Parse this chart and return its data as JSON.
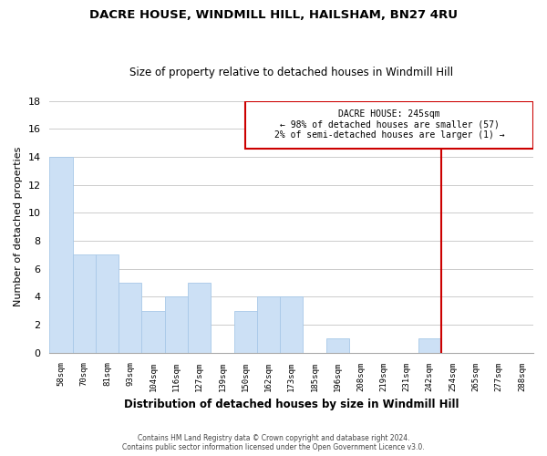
{
  "title": "DACRE HOUSE, WINDMILL HILL, HAILSHAM, BN27 4RU",
  "subtitle": "Size of property relative to detached houses in Windmill Hill",
  "xlabel": "Distribution of detached houses by size in Windmill Hill",
  "ylabel": "Number of detached properties",
  "footer_line1": "Contains HM Land Registry data © Crown copyright and database right 2024.",
  "footer_line2": "Contains public sector information licensed under the Open Government Licence v3.0.",
  "bin_labels": [
    "58sqm",
    "70sqm",
    "81sqm",
    "93sqm",
    "104sqm",
    "116sqm",
    "127sqm",
    "139sqm",
    "150sqm",
    "162sqm",
    "173sqm",
    "185sqm",
    "196sqm",
    "208sqm",
    "219sqm",
    "231sqm",
    "242sqm",
    "254sqm",
    "265sqm",
    "277sqm",
    "288sqm"
  ],
  "bar_values": [
    14,
    7,
    7,
    5,
    3,
    4,
    5,
    0,
    3,
    4,
    4,
    0,
    1,
    0,
    0,
    0,
    1,
    0,
    0,
    0,
    0
  ],
  "bar_color": "#cce0f5",
  "bar_edge_color": "#a8c8e8",
  "ylim": [
    0,
    18
  ],
  "yticks": [
    0,
    2,
    4,
    6,
    8,
    10,
    12,
    14,
    16,
    18
  ],
  "dacre_house_label": "DACRE HOUSE: 245sqm",
  "annotation_line1": "← 98% of detached houses are smaller (57)",
  "annotation_line2": "2% of semi-detached houses are larger (1) →",
  "vline_bin_index": 16,
  "vline_color": "#cc0000",
  "annotation_box_color": "#cc0000",
  "background_color": "#ffffff",
  "grid_color": "#cccccc",
  "title_fontsize": 9.5,
  "subtitle_fontsize": 8.5
}
